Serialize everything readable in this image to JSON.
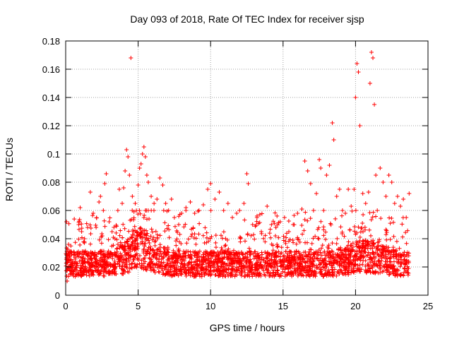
{
  "chart_data": {
    "type": "scatter",
    "title": "Day 093 of 2018, Rate Of TEC Index for receiver sjsp",
    "xlabel": "GPS time / hours",
    "ylabel": "ROTI / TECUs",
    "xlim": [
      0,
      25
    ],
    "ylim": [
      0,
      0.18
    ],
    "x_ticks": [
      "0",
      "5",
      "10",
      "15",
      "20",
      "25"
    ],
    "y_ticks": [
      "0",
      "0.02",
      "0.04",
      "0.06",
      "0.08",
      "0.1",
      "0.12",
      "0.14",
      "0.16",
      "0.18"
    ],
    "grid": true,
    "marker": "+",
    "color": "#ff0000",
    "series": [
      {
        "name": "ROTI",
        "points": [
          [
            0.1,
            0.01
          ],
          [
            0.2,
            0.036
          ],
          [
            0.4,
            0.022
          ],
          [
            0.6,
            0.018
          ],
          [
            0.8,
            0.03
          ],
          [
            0.9,
            0.05
          ],
          [
            1.0,
            0.062
          ],
          [
            1.1,
            0.045
          ],
          [
            1.3,
            0.04
          ],
          [
            1.5,
            0.028
          ],
          [
            1.7,
            0.073
          ],
          [
            1.9,
            0.058
          ],
          [
            2.1,
            0.048
          ],
          [
            2.3,
            0.066
          ],
          [
            2.4,
            0.07
          ],
          [
            2.6,
            0.06
          ],
          [
            2.7,
            0.079
          ],
          [
            2.8,
            0.086
          ],
          [
            3.0,
            0.052
          ],
          [
            3.2,
            0.045
          ],
          [
            3.4,
            0.04
          ],
          [
            3.6,
            0.06
          ],
          [
            3.7,
            0.075
          ],
          [
            3.9,
            0.065
          ],
          [
            4.0,
            0.076
          ],
          [
            4.1,
            0.088
          ],
          [
            4.2,
            0.103
          ],
          [
            4.3,
            0.098
          ],
          [
            4.4,
            0.085
          ],
          [
            4.5,
            0.168
          ],
          [
            4.6,
            0.07
          ],
          [
            4.8,
            0.065
          ],
          [
            5.0,
            0.078
          ],
          [
            5.1,
            0.09
          ],
          [
            5.2,
            0.093
          ],
          [
            5.3,
            0.1
          ],
          [
            5.4,
            0.105
          ],
          [
            5.5,
            0.098
          ],
          [
            5.6,
            0.085
          ],
          [
            5.7,
            0.08
          ],
          [
            5.9,
            0.07
          ],
          [
            6.1,
            0.065
          ],
          [
            6.3,
            0.068
          ],
          [
            6.5,
            0.083
          ],
          [
            6.7,
            0.078
          ],
          [
            6.9,
            0.065
          ],
          [
            7.1,
            0.06
          ],
          [
            7.3,
            0.068
          ],
          [
            7.5,
            0.055
          ],
          [
            7.8,
            0.05
          ],
          [
            8.0,
            0.058
          ],
          [
            8.3,
            0.062
          ],
          [
            8.6,
            0.066
          ],
          [
            8.9,
            0.058
          ],
          [
            9.2,
            0.06
          ],
          [
            9.5,
            0.064
          ],
          [
            9.8,
            0.075
          ],
          [
            10.0,
            0.079
          ],
          [
            10.3,
            0.068
          ],
          [
            10.6,
            0.073
          ],
          [
            10.9,
            0.06
          ],
          [
            11.2,
            0.065
          ],
          [
            11.5,
            0.055
          ],
          [
            11.8,
            0.058
          ],
          [
            12.0,
            0.06
          ],
          [
            12.3,
            0.065
          ],
          [
            12.5,
            0.086
          ],
          [
            12.6,
            0.079
          ],
          [
            12.9,
            0.05
          ],
          [
            13.2,
            0.055
          ],
          [
            13.5,
            0.045
          ],
          [
            13.9,
            0.063
          ],
          [
            14.2,
            0.05
          ],
          [
            14.5,
            0.048
          ],
          [
            14.8,
            0.052
          ],
          [
            15.1,
            0.055
          ],
          [
            15.4,
            0.045
          ],
          [
            15.7,
            0.05
          ],
          [
            16.0,
            0.058
          ],
          [
            16.3,
            0.061
          ],
          [
            16.5,
            0.095
          ],
          [
            16.7,
            0.088
          ],
          [
            16.9,
            0.079
          ],
          [
            17.1,
            0.06
          ],
          [
            17.3,
            0.072
          ],
          [
            17.5,
            0.096
          ],
          [
            17.6,
            0.09
          ],
          [
            17.8,
            0.06
          ],
          [
            18.0,
            0.085
          ],
          [
            18.2,
            0.092
          ],
          [
            18.4,
            0.122
          ],
          [
            18.5,
            0.11
          ],
          [
            18.7,
            0.07
          ],
          [
            18.9,
            0.075
          ],
          [
            19.1,
            0.06
          ],
          [
            19.3,
            0.058
          ],
          [
            19.5,
            0.075
          ],
          [
            19.7,
            0.063
          ],
          [
            19.9,
            0.075
          ],
          [
            20.0,
            0.14
          ],
          [
            20.1,
            0.164
          ],
          [
            20.2,
            0.158
          ],
          [
            20.3,
            0.12
          ],
          [
            20.5,
            0.072
          ],
          [
            20.7,
            0.065
          ],
          [
            20.9,
            0.073
          ],
          [
            21.0,
            0.15
          ],
          [
            21.1,
            0.172
          ],
          [
            21.2,
            0.168
          ],
          [
            21.3,
            0.135
          ],
          [
            21.4,
            0.085
          ],
          [
            21.5,
            0.06
          ],
          [
            21.7,
            0.09
          ],
          [
            21.9,
            0.08
          ],
          [
            22.1,
            0.07
          ],
          [
            22.3,
            0.085
          ],
          [
            22.5,
            0.08
          ],
          [
            22.7,
            0.065
          ],
          [
            22.9,
            0.07
          ],
          [
            23.1,
            0.063
          ],
          [
            23.3,
            0.068
          ],
          [
            23.5,
            0.055
          ],
          [
            23.7,
            0.072
          ],
          [
            0.3,
            0.015
          ],
          [
            2.0,
            0.02
          ],
          [
            4.0,
            0.025
          ],
          [
            6.0,
            0.022
          ],
          [
            8.0,
            0.018
          ],
          [
            10.0,
            0.017
          ],
          [
            12.0,
            0.016
          ],
          [
            14.0,
            0.016
          ],
          [
            16.0,
            0.017
          ],
          [
            18.0,
            0.02
          ],
          [
            20.0,
            0.022
          ],
          [
            22.0,
            0.02
          ],
          [
            23.6,
            0.016
          ]
        ]
      }
    ]
  }
}
